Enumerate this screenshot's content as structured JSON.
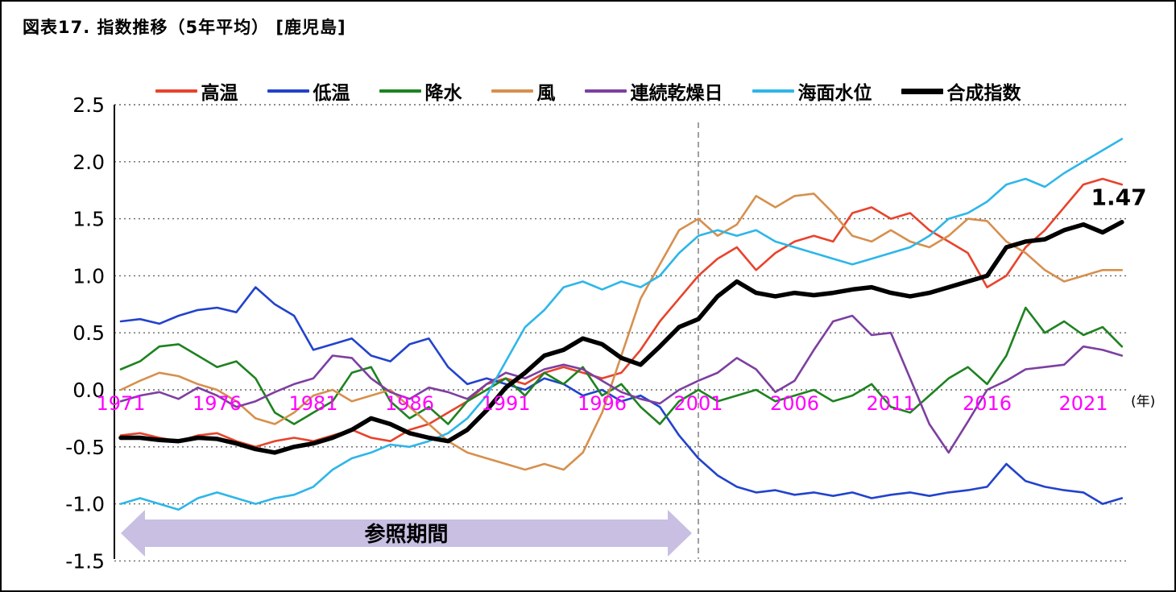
{
  "title": "図表17. 指数推移（5年平均） [鹿児島]",
  "annotation": {
    "text": "1.47",
    "year": 2021.4,
    "value": 1.62
  },
  "reference_period": {
    "label": "参照期間",
    "start_year": 1971,
    "end_year": 2001
  },
  "vertical_line_year": 2001,
  "colors": {
    "x_tick": "#ff00ff",
    "grid": "#666666",
    "axis": "#000000",
    "vline": "#888888",
    "arrow_fill": "#c8bfe2",
    "annotation": "#000000"
  },
  "chart_data": {
    "type": "line",
    "title": "図表17. 指数推移（5年平均） [鹿児島]",
    "xlabel_unit": "(年)",
    "ylabel": "",
    "ylim": [
      -1.5,
      2.5
    ],
    "y_step": 0.5,
    "y_ticks": [
      2.5,
      2.0,
      1.5,
      1.0,
      0.5,
      0.0,
      -0.5,
      -1.0,
      -1.5
    ],
    "x_start": 1971,
    "x_end": 2023,
    "x_ticks": [
      1971,
      1976,
      1981,
      1986,
      1991,
      1996,
      2001,
      2006,
      2011,
      2016,
      2021
    ],
    "grid": true,
    "legend_position": "top",
    "series": [
      {
        "key": "high-temp",
        "name": "高温",
        "color": "#e8432c",
        "line_width": 2.6,
        "values": [
          -0.4,
          -0.38,
          -0.42,
          -0.45,
          -0.4,
          -0.38,
          -0.45,
          -0.5,
          -0.45,
          -0.42,
          -0.45,
          -0.4,
          -0.35,
          -0.42,
          -0.45,
          -0.35,
          -0.3,
          -0.2,
          -0.1,
          0.05,
          0.1,
          0.05,
          0.15,
          0.2,
          0.15,
          0.1,
          0.15,
          0.35,
          0.6,
          0.8,
          1.0,
          1.15,
          1.25,
          1.05,
          1.2,
          1.3,
          1.35,
          1.3,
          1.55,
          1.6,
          1.5,
          1.55,
          1.4,
          1.3,
          1.2,
          0.9,
          1.0,
          1.25,
          1.4,
          1.6,
          1.8,
          1.85,
          1.8
        ]
      },
      {
        "key": "low-temp",
        "name": "低温",
        "color": "#2243cc",
        "line_width": 2.6,
        "values": [
          0.6,
          0.62,
          0.58,
          0.65,
          0.7,
          0.72,
          0.68,
          0.9,
          0.75,
          0.65,
          0.35,
          0.4,
          0.45,
          0.3,
          0.25,
          0.4,
          0.45,
          0.2,
          0.05,
          0.1,
          0.05,
          0.0,
          0.1,
          0.05,
          -0.05,
          0.0,
          -0.1,
          -0.05,
          -0.15,
          -0.4,
          -0.6,
          -0.75,
          -0.85,
          -0.9,
          -0.88,
          -0.92,
          -0.9,
          -0.93,
          -0.9,
          -0.95,
          -0.92,
          -0.9,
          -0.93,
          -0.9,
          -0.88,
          -0.85,
          -0.65,
          -0.8,
          -0.85,
          -0.88,
          -0.9,
          -1.0,
          -0.95
        ]
      },
      {
        "key": "precipitation",
        "name": "降水",
        "color": "#1e8220",
        "line_width": 2.6,
        "values": [
          0.18,
          0.25,
          0.38,
          0.4,
          0.3,
          0.2,
          0.25,
          0.1,
          -0.2,
          -0.3,
          -0.2,
          -0.1,
          0.15,
          0.2,
          -0.1,
          -0.25,
          -0.15,
          -0.3,
          -0.1,
          0.0,
          0.1,
          -0.05,
          0.15,
          0.05,
          0.2,
          -0.05,
          0.05,
          -0.15,
          -0.3,
          -0.1,
          0.0,
          -0.1,
          -0.05,
          0.0,
          -0.1,
          -0.05,
          0.0,
          -0.1,
          -0.05,
          0.05,
          -0.15,
          -0.2,
          -0.05,
          0.1,
          0.2,
          0.05,
          0.3,
          0.72,
          0.5,
          0.6,
          0.48,
          0.55,
          0.38
        ]
      },
      {
        "key": "wind",
        "name": "風",
        "color": "#d6904e",
        "line_width": 2.6,
        "values": [
          0.0,
          0.08,
          0.15,
          0.12,
          0.05,
          0.0,
          -0.1,
          -0.25,
          -0.3,
          -0.2,
          -0.05,
          0.0,
          -0.1,
          -0.05,
          0.0,
          -0.15,
          -0.3,
          -0.45,
          -0.55,
          -0.6,
          -0.65,
          -0.7,
          -0.65,
          -0.7,
          -0.55,
          -0.2,
          0.3,
          0.8,
          1.1,
          1.4,
          1.5,
          1.35,
          1.45,
          1.7,
          1.6,
          1.7,
          1.72,
          1.55,
          1.35,
          1.3,
          1.4,
          1.3,
          1.25,
          1.35,
          1.5,
          1.48,
          1.3,
          1.2,
          1.05,
          0.95,
          1.0,
          1.05,
          1.05
        ]
      },
      {
        "key": "consecutive-dry-days",
        "name": "連続乾燥日",
        "color": "#7d3fa0",
        "line_width": 2.6,
        "values": [
          -0.1,
          -0.05,
          -0.02,
          -0.08,
          0.02,
          -0.05,
          -0.15,
          -0.1,
          -0.02,
          0.05,
          0.1,
          0.3,
          0.28,
          0.1,
          -0.02,
          -0.08,
          0.02,
          -0.02,
          -0.08,
          0.05,
          0.15,
          0.1,
          0.18,
          0.22,
          0.18,
          0.08,
          -0.02,
          -0.08,
          -0.12,
          0.0,
          0.08,
          0.15,
          0.28,
          0.18,
          -0.02,
          0.08,
          0.35,
          0.6,
          0.65,
          0.48,
          0.5,
          0.1,
          -0.3,
          -0.55,
          -0.28,
          0.0,
          0.08,
          0.18,
          0.2,
          0.22,
          0.38,
          0.35,
          0.3
        ]
      },
      {
        "key": "sea-level",
        "name": "海面水位",
        "color": "#2eb6e8",
        "line_width": 2.6,
        "values": [
          -1.0,
          -0.95,
          -1.0,
          -1.05,
          -0.95,
          -0.9,
          -0.95,
          -1.0,
          -0.95,
          -0.92,
          -0.85,
          -0.7,
          -0.6,
          -0.55,
          -0.48,
          -0.5,
          -0.45,
          -0.38,
          -0.25,
          -0.05,
          0.25,
          0.55,
          0.7,
          0.9,
          0.95,
          0.88,
          0.95,
          0.9,
          1.0,
          1.2,
          1.35,
          1.4,
          1.35,
          1.4,
          1.3,
          1.25,
          1.2,
          1.15,
          1.1,
          1.15,
          1.2,
          1.25,
          1.35,
          1.5,
          1.55,
          1.65,
          1.8,
          1.85,
          1.78,
          1.9,
          2.0,
          2.1,
          2.2
        ]
      },
      {
        "key": "composite-index",
        "name": "合成指数",
        "color": "#000000",
        "line_width": 5.5,
        "values": [
          -0.42,
          -0.42,
          -0.44,
          -0.45,
          -0.42,
          -0.43,
          -0.47,
          -0.52,
          -0.55,
          -0.5,
          -0.47,
          -0.42,
          -0.35,
          -0.25,
          -0.3,
          -0.38,
          -0.42,
          -0.45,
          -0.35,
          -0.18,
          0.02,
          0.15,
          0.3,
          0.35,
          0.45,
          0.4,
          0.28,
          0.22,
          0.38,
          0.55,
          0.62,
          0.82,
          0.95,
          0.85,
          0.82,
          0.85,
          0.83,
          0.85,
          0.88,
          0.9,
          0.85,
          0.82,
          0.85,
          0.9,
          0.95,
          1.0,
          1.25,
          1.3,
          1.32,
          1.4,
          1.45,
          1.38,
          1.47
        ]
      }
    ]
  }
}
